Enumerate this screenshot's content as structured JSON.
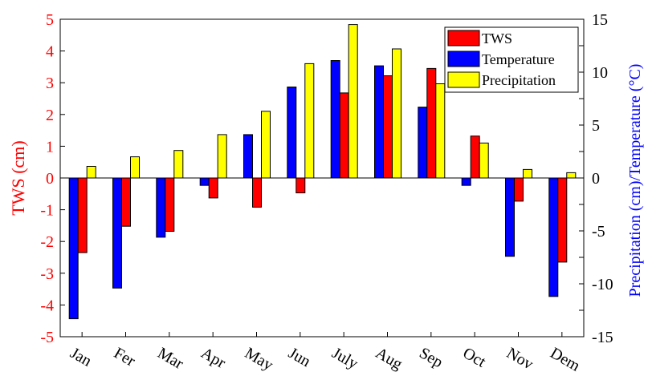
{
  "chart_data": {
    "type": "bar",
    "categories": [
      "Jan",
      "Fer",
      "Mar",
      "Apr",
      "May",
      "Jun",
      "July",
      "Aug",
      "Sep",
      "Oct",
      "Nov",
      "Dem"
    ],
    "series": [
      {
        "name": "TWS",
        "axis": "left",
        "color": "#ff0000",
        "values": [
          -2.35,
          -1.52,
          -1.68,
          -0.63,
          -0.92,
          -0.47,
          2.68,
          3.22,
          3.45,
          1.32,
          -0.73,
          -2.65
        ]
      },
      {
        "name": "Temperature",
        "axis": "right",
        "color": "#0000ff",
        "values": [
          -13.3,
          -10.4,
          -5.6,
          -0.7,
          4.1,
          8.6,
          11.1,
          10.6,
          6.7,
          -0.7,
          -7.4,
          -11.2
        ]
      },
      {
        "name": "Precipitation",
        "axis": "right",
        "color": "#ffff00",
        "values": [
          1.1,
          2.0,
          2.6,
          4.1,
          6.3,
          10.8,
          14.5,
          12.2,
          8.9,
          3.3,
          0.8,
          0.5
        ]
      }
    ],
    "ylabel": "TWS (cm)",
    "ylabel_right": "Precipitation (cm)/Temperature (°C)",
    "ylim": [
      -5,
      5
    ],
    "ylim_right": [
      -15,
      15
    ],
    "yticks": [
      "-5",
      "-4",
      "-3",
      "-2",
      "-1",
      "0",
      "1",
      "2",
      "3",
      "4",
      "5"
    ],
    "yticks_right": [
      "-15",
      "-10",
      "-5",
      "0",
      "5",
      "10",
      "15"
    ],
    "legend_position": "top-right",
    "grid": false,
    "left_axis_color": "#ff0000",
    "right_axis_color": "#0000ff"
  }
}
